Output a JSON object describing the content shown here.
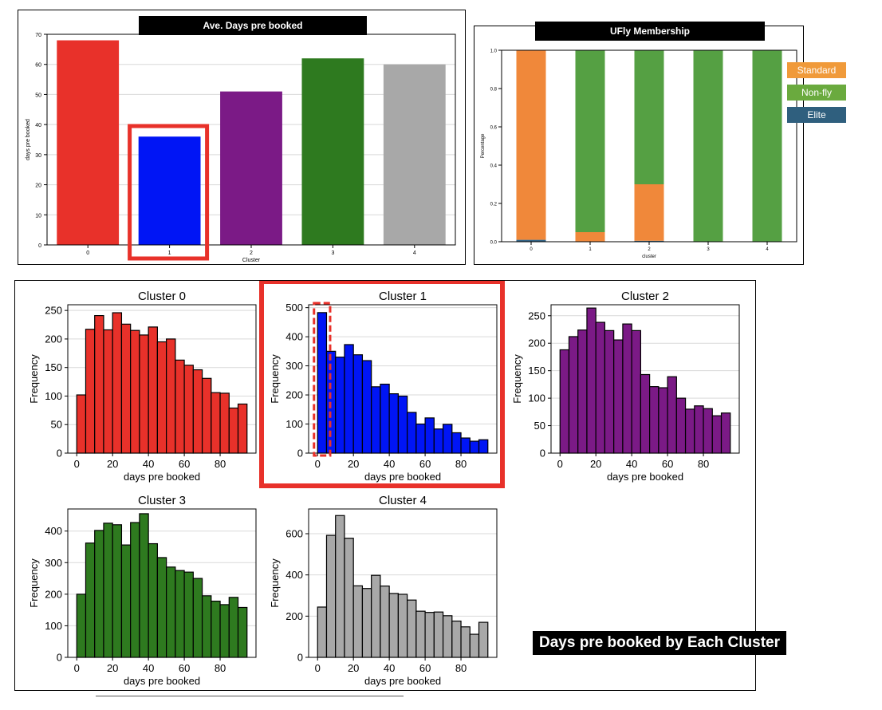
{
  "avg_chart": {
    "title": "Ave. Days pre booked",
    "xlabel": "Cluster",
    "ylabel": "days pre booked",
    "categories": [
      "0",
      "1",
      "2",
      "3",
      "4"
    ],
    "values": [
      68,
      36,
      51,
      62,
      60
    ],
    "colors": [
      "#e8312a",
      "#0015f5",
      "#7b1a86",
      "#2e7a1f",
      "#a8a8a8"
    ],
    "yticks": [
      "0",
      "10",
      "20",
      "30",
      "40",
      "50",
      "60",
      "70"
    ],
    "highlight_index": 1
  },
  "membership_chart": {
    "title": "UFly Membership",
    "xlabel": "cluster",
    "ylabel": "Percentage",
    "categories": [
      "0",
      "1",
      "2",
      "3",
      "4"
    ],
    "yticks": [
      "0.0",
      "0.2",
      "0.4",
      "0.6",
      "0.8",
      "1.0"
    ],
    "series": [
      {
        "name": "Elite",
        "color": "#2f6388",
        "values": [
          0.01,
          0.0,
          0.005,
          0.0,
          0.0
        ]
      },
      {
        "name": "Standard",
        "color": "#f0883a",
        "values": [
          0.99,
          0.05,
          0.295,
          0.0,
          0.0
        ]
      },
      {
        "name": "Non-fly",
        "color": "#55a043",
        "values": [
          0.0,
          0.95,
          0.7,
          1.0,
          1.0
        ]
      }
    ],
    "legend": [
      {
        "label": "Standard",
        "color": "#f09a3a"
      },
      {
        "label": "Non-fly",
        "color": "#6aaa3e"
      },
      {
        "label": "Elite",
        "color": "#2f5f7e"
      }
    ]
  },
  "histograms_caption": "Days pre booked by Each Cluster",
  "chart_data": [
    {
      "type": "bar",
      "title": "Ave. Days pre booked",
      "xlabel": "Cluster",
      "ylabel": "days pre booked",
      "categories": [
        "0",
        "1",
        "2",
        "3",
        "4"
      ],
      "values": [
        68,
        36,
        51,
        62,
        60
      ],
      "ylim": [
        0,
        70
      ]
    },
    {
      "type": "bar",
      "title": "UFly Membership",
      "xlabel": "cluster",
      "ylabel": "Percentage",
      "categories": [
        "0",
        "1",
        "2",
        "3",
        "4"
      ],
      "stacked": true,
      "series": [
        {
          "name": "Elite",
          "values": [
            0.01,
            0.0,
            0.005,
            0.0,
            0.0
          ]
        },
        {
          "name": "Standard",
          "values": [
            0.99,
            0.05,
            0.295,
            0.0,
            0.0
          ]
        },
        {
          "name": "Non-fly",
          "values": [
            0.0,
            0.95,
            0.7,
            1.0,
            1.0
          ]
        }
      ],
      "ylim": [
        0,
        1.0
      ]
    },
    {
      "type": "bar",
      "title": "Cluster 0",
      "xlabel": "days pre booked",
      "ylabel": "Frequency",
      "color": "#e8312a",
      "xticks": [
        "0",
        "20",
        "40",
        "60",
        "80"
      ],
      "yticks": [
        "0",
        "50",
        "100",
        "150",
        "200",
        "250"
      ],
      "ylim": [
        0,
        260
      ],
      "values": [
        102,
        217,
        241,
        216,
        246,
        226,
        215,
        207,
        221,
        195,
        200,
        163,
        154,
        146,
        131,
        106,
        105,
        79,
        86
      ]
    },
    {
      "type": "bar",
      "title": "Cluster 1",
      "xlabel": "days pre booked",
      "ylabel": "Frequency",
      "color": "#0015f5",
      "xticks": [
        "0",
        "20",
        "40",
        "60",
        "80"
      ],
      "yticks": [
        "0",
        "100",
        "200",
        "300",
        "400",
        "500"
      ],
      "ylim": [
        0,
        510
      ],
      "values": [
        483,
        350,
        330,
        373,
        338,
        318,
        228,
        237,
        204,
        196,
        140,
        100,
        121,
        83,
        99,
        70,
        52,
        41,
        46
      ]
    },
    {
      "type": "bar",
      "title": "Cluster 2",
      "xlabel": "days pre booked",
      "ylabel": "Frequency",
      "color": "#7b1a86",
      "xticks": [
        "0",
        "20",
        "40",
        "60",
        "80"
      ],
      "yticks": [
        "0",
        "50",
        "100",
        "150",
        "200",
        "250"
      ],
      "ylim": [
        0,
        270
      ],
      "values": [
        188,
        212,
        224,
        264,
        238,
        223,
        206,
        235,
        223,
        143,
        121,
        119,
        139,
        100,
        80,
        86,
        81,
        68,
        73
      ]
    },
    {
      "type": "bar",
      "title": "Cluster 3",
      "xlabel": "days pre booked",
      "ylabel": "Frequency",
      "color": "#2e7a1f",
      "xticks": [
        "0",
        "20",
        "40",
        "60",
        "80"
      ],
      "yticks": [
        "0",
        "100",
        "200",
        "300",
        "400"
      ],
      "ylim": [
        0,
        470
      ],
      "values": [
        200,
        362,
        402,
        425,
        420,
        356,
        427,
        455,
        360,
        316,
        286,
        275,
        270,
        250,
        195,
        178,
        167,
        190,
        158
      ]
    },
    {
      "type": "bar",
      "title": "Cluster 4",
      "xlabel": "days pre booked",
      "ylabel": "Frequency",
      "color": "#a8a8a8",
      "xticks": [
        "0",
        "20",
        "40",
        "60",
        "80"
      ],
      "yticks": [
        "0",
        "200",
        "400",
        "600"
      ],
      "ylim": [
        0,
        720
      ],
      "values": [
        244,
        592,
        688,
        578,
        347,
        334,
        398,
        346,
        310,
        306,
        278,
        224,
        218,
        220,
        202,
        176,
        148,
        112,
        170
      ]
    }
  ]
}
